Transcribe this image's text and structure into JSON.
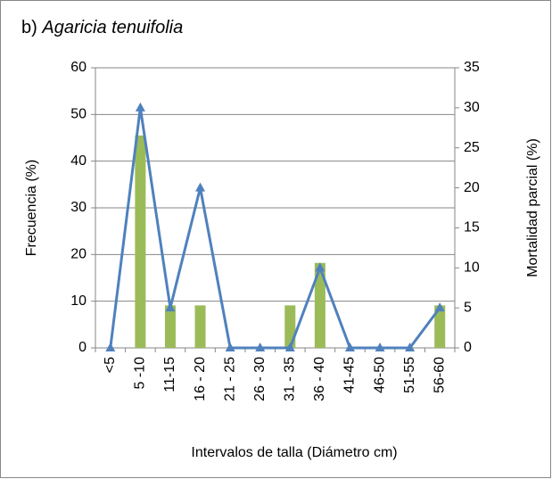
{
  "chart_data": {
    "type": "bar_line",
    "panel_label": "b)",
    "title": "Agaricia tenuifolia",
    "xlabel": "Intervalos de talla (Diámetro cm)",
    "ylabel": "Frecuencia (%)",
    "y2label": "Mortalidad parcial (%)",
    "categories": [
      "<5",
      "5 -10",
      "11-15",
      "16 - 20",
      "21 - 25",
      "26 - 30",
      "31 - 35",
      "36 - 40",
      "41-45",
      "46-50",
      "51-55",
      "56-60"
    ],
    "series": [
      {
        "type": "bar",
        "color": "#9bbb59",
        "values": [
          0,
          45.5,
          9.1,
          9.1,
          0,
          0,
          9.1,
          18.2,
          0,
          0,
          0,
          9.1
        ]
      },
      {
        "type": "line",
        "axis": "y2",
        "color": "#4f81bd",
        "values": [
          0,
          30,
          5,
          20,
          0,
          0,
          0,
          10,
          0,
          0,
          0,
          5
        ]
      }
    ],
    "ylim": [
      0,
      60
    ],
    "yticks": [
      0,
      10,
      20,
      30,
      40,
      50,
      60
    ],
    "y2lim": [
      0,
      35
    ],
    "y2ticks": [
      0,
      5,
      10,
      15,
      20,
      25,
      30,
      35
    ],
    "grid": true
  }
}
